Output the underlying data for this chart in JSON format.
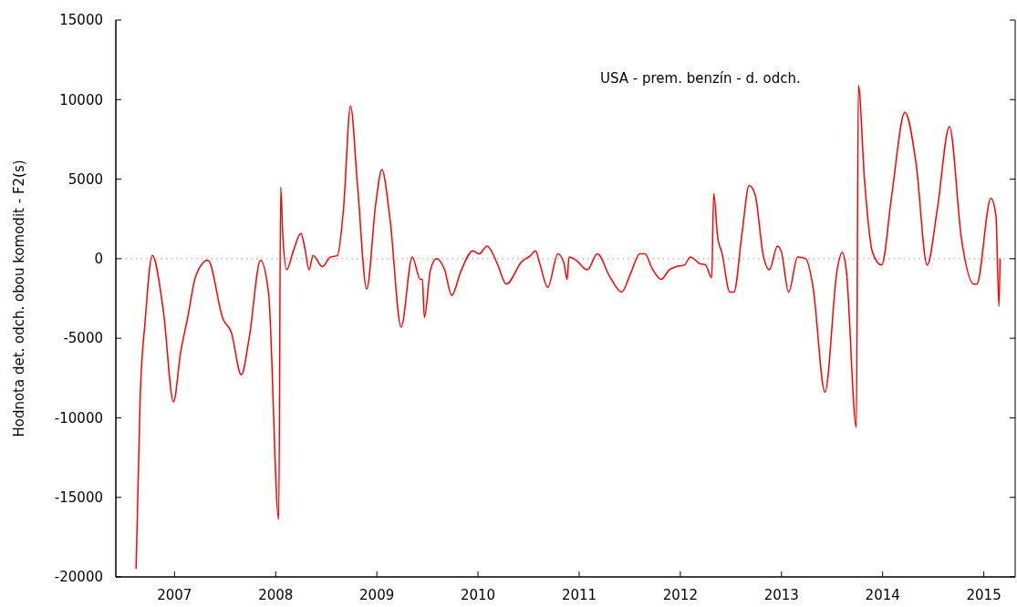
{
  "chart_data": {
    "type": "line",
    "title": "USA - prem. benzín - d. odch.",
    "ylabel": "Hodnota det. odch. obou komodit - F2(s)",
    "xlim": [
      2006.42,
      2015.31
    ],
    "xticks": [
      2007,
      2008,
      2009,
      2010,
      2011,
      2012,
      2013,
      2014,
      2015
    ],
    "ylim": [
      -20000,
      15000
    ],
    "yticks": [
      -20000,
      -15000,
      -10000,
      -5000,
      0,
      5000,
      10000,
      15000
    ],
    "grid": false,
    "ref_lines": [
      {
        "axis": "y",
        "value": 0,
        "color": "#999999",
        "line_style": "dotted"
      }
    ],
    "series": [
      {
        "color": "#ff0000",
        "x": [
          2006.62,
          2006.66,
          2006.71,
          2006.78,
          2006.89,
          2006.99,
          2007.06,
          2007.13,
          2007.21,
          2007.33,
          2007.48,
          2007.56,
          2007.66,
          2007.74,
          2007.85,
          2007.93,
          2008.03,
          2008.05,
          2008.07,
          2008.11,
          2008.17,
          2008.25,
          2008.29,
          2008.33,
          2008.37,
          2008.46,
          2008.54,
          2008.61,
          2008.67,
          2008.74,
          2008.81,
          2008.9,
          2008.99,
          2009.05,
          2009.13,
          2009.24,
          2009.35,
          2009.43,
          2009.45,
          2009.47,
          2009.53,
          2009.59,
          2009.67,
          2009.74,
          2009.83,
          2009.95,
          2010.01,
          2010.09,
          2010.19,
          2010.28,
          2010.43,
          2010.52,
          2010.57,
          2010.61,
          2010.69,
          2010.79,
          2010.85,
          2010.88,
          2010.9,
          2010.97,
          2011.08,
          2011.18,
          2011.3,
          2011.42,
          2011.51,
          2011.6,
          2011.65,
          2011.72,
          2011.81,
          2011.89,
          2011.96,
          2012.04,
          2012.1,
          2012.19,
          2012.25,
          2012.31,
          2012.33,
          2012.37,
          2012.41,
          2012.49,
          2012.53,
          2012.61,
          2012.68,
          2012.74,
          2012.82,
          2012.88,
          2012.96,
          2013.0,
          2013.07,
          2013.16,
          2013.24,
          2013.31,
          2013.43,
          2013.55,
          2013.6,
          2013.64,
          2013.74,
          2013.76,
          2013.82,
          2013.9,
          2013.99,
          2014.09,
          2014.22,
          2014.33,
          2014.44,
          2014.54,
          2014.66,
          2014.78,
          2014.9,
          2014.93,
          2015.07,
          2015.12,
          2015.15,
          2015.16
        ],
        "values": [
          -19500,
          -8800,
          -3900,
          200,
          -3300,
          -9000,
          -5900,
          -3700,
          -1100,
          -100,
          -3800,
          -4600,
          -7300,
          -4900,
          -100,
          -2200,
          -16400,
          4500,
          1500,
          -700,
          400,
          1600,
          600,
          -700,
          200,
          -500,
          100,
          200,
          3100,
          9600,
          4500,
          -1900,
          3500,
          5600,
          2500,
          -4300,
          100,
          -1300,
          -1300,
          -3700,
          -700,
          0,
          -700,
          -2300,
          -800,
          500,
          300,
          800,
          -300,
          -1600,
          -200,
          200,
          500,
          -300,
          -1800,
          300,
          -300,
          -1300,
          100,
          -100,
          -700,
          300,
          -1100,
          -2100,
          -900,
          300,
          300,
          -600,
          -1300,
          -700,
          -500,
          -400,
          100,
          -300,
          -400,
          -1200,
          4100,
          1300,
          400,
          -2100,
          -2100,
          1600,
          4600,
          4000,
          200,
          -700,
          800,
          400,
          -2100,
          100,
          0,
          -1700,
          -8400,
          -700,
          400,
          -700,
          -10600,
          10900,
          5000,
          400,
          -400,
          4000,
          9200,
          6000,
          -400,
          3100,
          8300,
          1200,
          -1600,
          -1600,
          3800,
          2700,
          -3000,
          0
        ]
      }
    ]
  }
}
